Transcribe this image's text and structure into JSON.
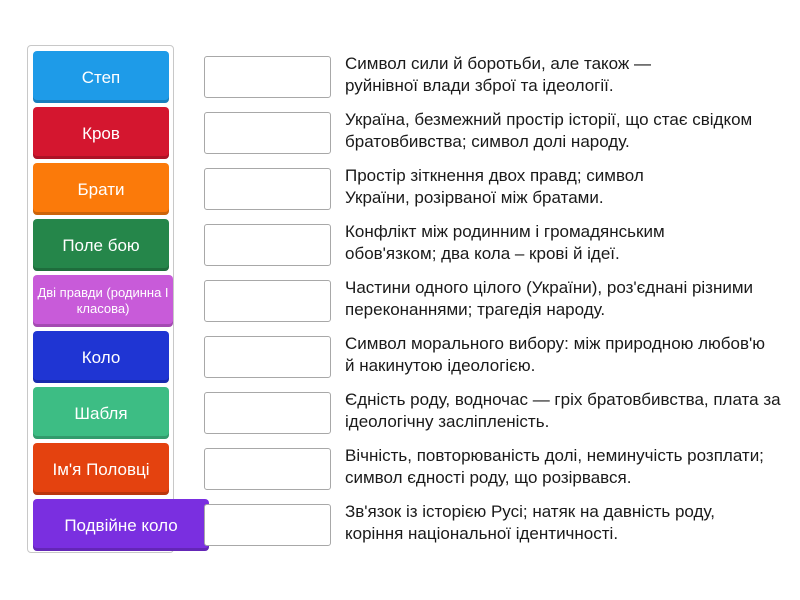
{
  "tiles": [
    {
      "label": "Степ",
      "color": "#1e9be8"
    },
    {
      "label": "Кров",
      "color": "#d4162f"
    },
    {
      "label": "Брати",
      "color": "#fb7a0a"
    },
    {
      "label": "Поле бою",
      "color": "#25864a"
    },
    {
      "label": "Дві правди (родинна І класова)",
      "color": "#c85bd9"
    },
    {
      "label": "Коло",
      "color": "#1f35d3"
    },
    {
      "label": "Шабля",
      "color": "#3dbd84"
    },
    {
      "label": "Ім'я Половці",
      "color": "#e4420f"
    },
    {
      "label": "Подвійне коло",
      "color": "#7a2fe0"
    }
  ],
  "descriptions": [
    "Символ сили й боротьби, але також — руйнівної влади зброї та ідеології.",
    "Україна, безмежний простір історії, що стає свідком братовбивства; символ долі народу.",
    "Простір зіткнення двох правд; символ України, розірваної між братами.",
    "Конфлікт між родинним і громадянським обов'язком; два кола – крові й ідеї.",
    "Частини одного цілого (України), роз'єднані різними переконаннями; трагедія народу.",
    "Символ морального вибору: між природною любов'ю й накинутою ідеологією.",
    "Єдність роду, водночас — гріх братовбивства, плата за ідеологічну засліпленість.",
    "Вічність, повторюваність долі, неминучість розплати; символ єдності роду, що розірвався.",
    "Зв'язок із історією Русі; натяк на давність роду, коріння національної ідентичності."
  ]
}
